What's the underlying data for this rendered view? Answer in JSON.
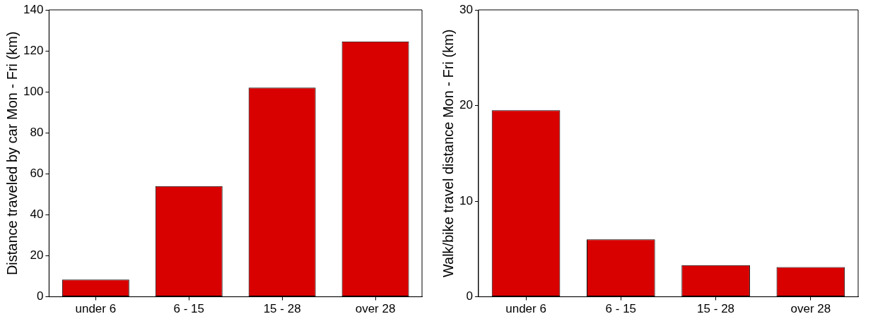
{
  "chart_data": [
    {
      "type": "bar",
      "ylabel": "Distance traveled by car Mon - Fri (km)",
      "categories": [
        "under 6",
        "6 - 15",
        "15 - 28",
        "over 28"
      ],
      "values": [
        8.4,
        54,
        102,
        124.6
      ],
      "color": "#d90000",
      "ylim": [
        0,
        140
      ],
      "yticks": [
        0,
        20,
        40,
        60,
        80,
        100,
        120,
        140
      ]
    },
    {
      "type": "bar",
      "ylabel": "Walk/bike travel distance Mon - Fri (km)",
      "categories": [
        "under 6",
        "6 - 15",
        "15 - 28",
        "over 28"
      ],
      "values": [
        19.5,
        6.0,
        3.3,
        3.1
      ],
      "color": "#d90000",
      "ylim": [
        0,
        30
      ],
      "yticks": [
        0,
        10,
        20,
        30
      ]
    }
  ]
}
